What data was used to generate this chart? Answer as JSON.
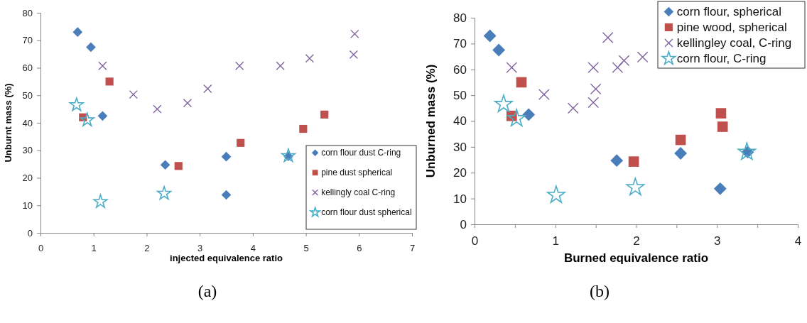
{
  "chart_data": [
    {
      "type": "scatter",
      "xlabel": "injected equivalence ratio",
      "ylabel": "Unburnt mass (%)",
      "xlim": [
        0,
        7
      ],
      "ylim": [
        0,
        80
      ],
      "xticks": [
        0,
        1,
        2,
        3,
        4,
        5,
        6,
        7
      ],
      "yticks": [
        0,
        10,
        20,
        30,
        40,
        50,
        60,
        70,
        80
      ],
      "grid": false,
      "legend": "bottom right",
      "annotations": [
        "(a)"
      ],
      "series": [
        {
          "name": "corn flour dust C-ring",
          "color": "#4a7ebb",
          "marker": "diamond",
          "x": [
            0.7,
            0.95,
            1.17,
            2.35,
            3.5,
            3.5,
            4.67
          ],
          "values": [
            73,
            67.5,
            42.5,
            24.7,
            27.7,
            13.8,
            27.8
          ]
        },
        {
          "name": "pine dust spherical",
          "color": "#c0504d",
          "marker": "square",
          "x": [
            0.8,
            1.3,
            2.6,
            3.77,
            4.95,
            5.35
          ],
          "values": [
            42,
            55,
            24.3,
            32.7,
            37.8,
            43
          ]
        },
        {
          "name": "kellingly coal C-ring",
          "color": "#8064a2",
          "marker": "cross",
          "x": [
            1.17,
            1.75,
            2.2,
            2.77,
            3.15,
            3.75,
            4.52,
            5.07,
            5.9,
            5.92
          ],
          "values": [
            60.7,
            50.3,
            45,
            47.2,
            52.4,
            60.7,
            60.7,
            63.4,
            64.8,
            72.3
          ]
        },
        {
          "name": "corn flour dust spherical",
          "color": "#4bacc6",
          "marker": "star",
          "x": [
            0.68,
            0.88,
            1.13,
            2.33,
            4.67
          ],
          "values": [
            46.5,
            41,
            11.3,
            14.3,
            28
          ]
        }
      ]
    },
    {
      "type": "scatter",
      "xlabel": "Burned  equivalence ratio",
      "ylabel": "Unburned mass (%)",
      "xlim": [
        0,
        4
      ],
      "ylim": [
        0,
        80
      ],
      "xticks": [
        0,
        {
          "value": 0.5,
          "label": null
        },
        1,
        {
          "value": 1.5,
          "label": null
        },
        2,
        {
          "value": 2.5,
          "label": null
        },
        3,
        {
          "value": 3.5,
          "label": null
        },
        4
      ],
      "yticks": [
        0,
        10,
        20,
        30,
        40,
        50,
        60,
        70,
        80
      ],
      "grid": false,
      "legend": "top right",
      "annotations": [
        "(b)"
      ],
      "series": [
        {
          "name": "corn flour, spherical",
          "color": "#4a7ebb",
          "marker": "diamond",
          "x": [
            0.19,
            0.3,
            0.67,
            1.76,
            2.55,
            3.04,
            3.38
          ],
          "values": [
            73,
            67.5,
            42.5,
            24.7,
            27.5,
            13.8,
            28
          ]
        },
        {
          "name": "pine wood, spherical",
          "color": "#c0504d",
          "marker": "square",
          "x": [
            0.46,
            0.58,
            1.97,
            2.55,
            3.07,
            3.05
          ],
          "values": [
            42,
            55,
            24.3,
            32.7,
            37.8,
            43
          ]
        },
        {
          "name": "kellingley coal, C-ring",
          "color": "#8064a2",
          "marker": "cross",
          "x": [
            0.46,
            0.86,
            1.22,
            1.47,
            1.5,
            1.47,
            1.65,
            1.77,
            1.85,
            2.08
          ],
          "values": [
            60.7,
            50.3,
            45,
            47.2,
            52.4,
            60.7,
            72.3,
            60.7,
            63.4,
            64.8
          ]
        },
        {
          "name": "corn flour, C-ring",
          "color": "#4bacc6",
          "marker": "star",
          "x": [
            0.36,
            0.52,
            1.01,
            1.99,
            3.37
          ],
          "values": [
            46.5,
            41,
            11.3,
            14.3,
            28
          ]
        }
      ]
    }
  ]
}
